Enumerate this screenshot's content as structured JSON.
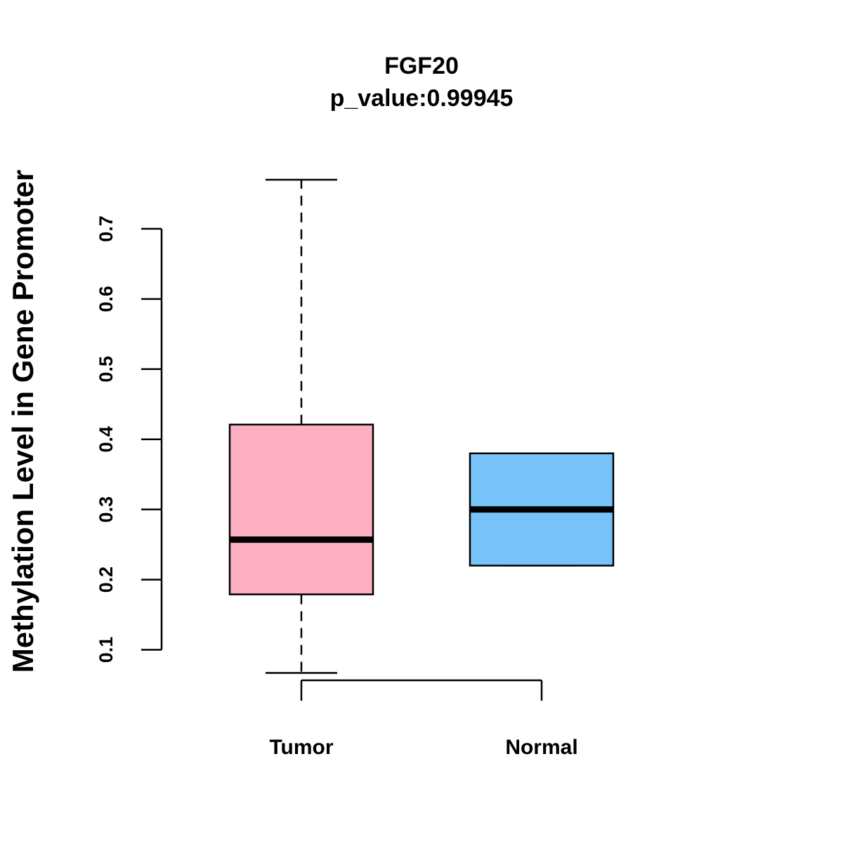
{
  "chart_data": {
    "type": "box",
    "title": "FGF20",
    "subtitle": "p_value:0.99945",
    "ylabel": "Methylation Level in Gene Promoter",
    "xlabel": "",
    "categories": [
      "Tumor",
      "Normal"
    ],
    "yticks": [
      "0.1",
      "0.2",
      "0.3",
      "0.4",
      "0.5",
      "0.6",
      "0.7"
    ],
    "ylim": [
      0.0395,
      0.797
    ],
    "grid": false,
    "boxes": [
      {
        "category": "Tumor",
        "min": 0.067,
        "q1": 0.179,
        "median": 0.257,
        "q3": 0.421,
        "max": 0.77,
        "color": "#FCB0C1"
      },
      {
        "category": "Normal",
        "min": 0.22,
        "q1": 0.22,
        "median": 0.3,
        "q3": 0.38,
        "max": 0.38,
        "color": "#77C2F9"
      }
    ]
  }
}
